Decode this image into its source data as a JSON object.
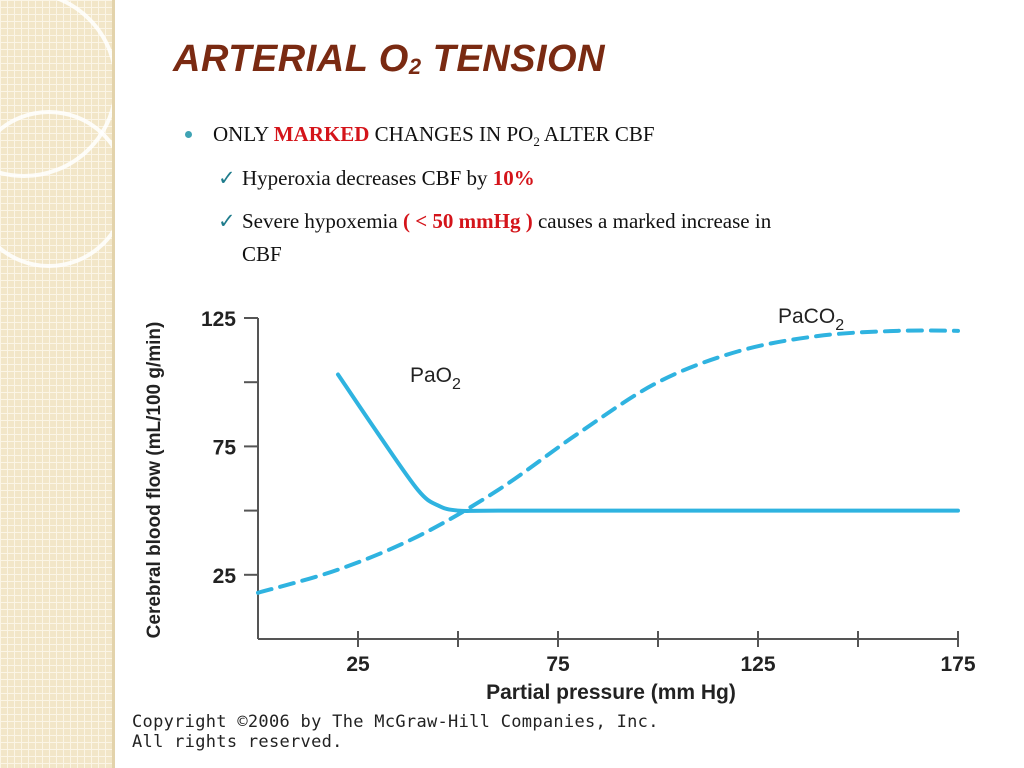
{
  "slide": {
    "title_main": "ARTERIAL O",
    "title_sub": "2",
    "title_end": " TENSION",
    "bullet": {
      "pre": "ONLY ",
      "marked": "MARKED",
      "mid": " CHANGES IN PO",
      "sub": "2",
      "post": "  ALTER  CBF"
    },
    "check1": {
      "text": "Hyperoxia decreases CBF by ",
      "value": "10%"
    },
    "check2": {
      "pre": "Severe hypoxemia ",
      "highlight": "( < 50 mmHg )",
      "post": " causes a marked increase in",
      "wrap": "CBF"
    },
    "copyright_line1": "Copyright ©2006 by The McGraw-Hill Companies, Inc.",
    "copyright_line2": "All rights reserved."
  },
  "colors": {
    "title": "#7a2a12",
    "highlight": "#d4141a",
    "curve": "#2fb3e0",
    "bullet": "#3fa3b4"
  },
  "chart_data": {
    "type": "line",
    "xlabel": "Partial pressure (mm Hg)",
    "ylabel": "Cerebral blood flow (mL/100 g/min)",
    "xlim": [
      0,
      175
    ],
    "ylim": [
      0,
      125
    ],
    "x_ticks": [
      "25",
      "75",
      "125",
      "175"
    ],
    "y_ticks": [
      "25",
      "75",
      "125"
    ],
    "series": [
      {
        "name": "PaO",
        "name_sub": "2",
        "style": "solid",
        "x": [
          20,
          30,
          40,
          45,
          50,
          60,
          100,
          150,
          175
        ],
        "y": [
          103,
          80,
          58,
          52,
          50,
          50,
          50,
          50,
          50
        ]
      },
      {
        "name": "PaCO",
        "name_sub": "2",
        "style": "dashed",
        "x": [
          0,
          20,
          40,
          60,
          80,
          100,
          120,
          140,
          160,
          175
        ],
        "y": [
          18,
          27,
          40,
          58,
          80,
          100,
          112,
          118,
          120,
          120
        ]
      }
    ]
  }
}
